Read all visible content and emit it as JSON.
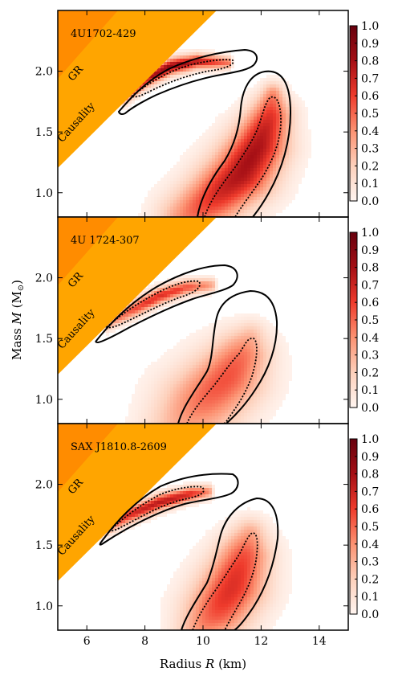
{
  "chart_data": {
    "type": "heatmap",
    "shared_axes": {
      "xlabel": "Radius R (km)",
      "ylabel": "Mass M (M⊙)",
      "xlim": [
        5,
        15
      ],
      "ylim": [
        0.8,
        2.5
      ],
      "xticks": [
        6,
        8,
        10,
        12,
        14
      ],
      "xtick_labels": [
        "6",
        "8",
        "10",
        "12",
        "14"
      ],
      "yticks": [
        1.0,
        1.5,
        2.0
      ],
      "ytick_labels": [
        "1.0",
        "1.5",
        "2.0"
      ]
    },
    "colorbar": {
      "range": [
        0.0,
        1.0
      ],
      "ticks": [
        0.0,
        0.1,
        0.2,
        0.3,
        0.4,
        0.5,
        0.6,
        0.7,
        0.8,
        0.9,
        1.0
      ],
      "tick_labels": [
        "0.0",
        "0.1",
        "0.2",
        "0.3",
        "0.4",
        "0.5",
        "0.6",
        "0.7",
        "0.8",
        "0.9",
        "1.0"
      ],
      "colors": [
        "#fff5f0",
        "#fdd0bb",
        "#fc9272",
        "#ef3b2c",
        "#a50f15",
        "#67000d"
      ]
    },
    "regions": {
      "gr_label": "GR",
      "gr_color": "#ff8c00",
      "causality_label": "Causality",
      "causality_color": "#ffa500"
    },
    "panels": [
      {
        "title": "4U1702-429",
        "blobs": [
          {
            "spine": [
              [
                7.3,
                1.78
              ],
              [
                8.0,
                1.93
              ],
              [
                8.9,
                2.04
              ],
              [
                9.8,
                2.08
              ],
              [
                10.9,
                2.07
              ]
            ],
            "width": [
              0.04,
              0.06,
              0.06,
              0.05,
              0.03
            ],
            "peak": 0.85
          },
          {
            "spine": [
              [
                9.5,
                0.8
              ],
              [
                10.4,
                0.96
              ],
              [
                11.3,
                1.15
              ],
              [
                11.9,
                1.38
              ],
              [
                12.3,
                1.62
              ],
              [
                12.4,
                1.8
              ]
            ],
            "width": [
              0.3,
              0.32,
              0.34,
              0.3,
              0.22,
              0.12
            ],
            "peak": 0.8
          }
        ]
      },
      {
        "title": "4U 1724-307",
        "blobs": [
          {
            "spine": [
              [
                6.7,
                1.62
              ],
              [
                7.6,
                1.74
              ],
              [
                8.5,
                1.85
              ],
              [
                9.4,
                1.92
              ],
              [
                10.3,
                1.94
              ]
            ],
            "width": [
              0.04,
              0.06,
              0.06,
              0.05,
              0.04
            ],
            "peak": 0.65
          },
          {
            "spine": [
              [
                9.2,
                0.8
              ],
              [
                10.0,
                0.98
              ],
              [
                10.8,
                1.17
              ],
              [
                11.3,
                1.35
              ],
              [
                11.6,
                1.5
              ]
            ],
            "width": [
              0.35,
              0.42,
              0.38,
              0.3,
              0.18
            ],
            "peak": 0.55
          }
        ]
      },
      {
        "title": "SAX J1810.8-2609",
        "blobs": [
          {
            "spine": [
              [
                6.5,
                1.62
              ],
              [
                7.4,
                1.74
              ],
              [
                8.5,
                1.85
              ],
              [
                9.6,
                1.92
              ],
              [
                10.2,
                1.94
              ]
            ],
            "width": [
              0.04,
              0.06,
              0.06,
              0.05,
              0.04
            ],
            "peak": 0.75
          },
          {
            "spine": [
              [
                9.9,
                0.8
              ],
              [
                10.5,
                0.96
              ],
              [
                11.0,
                1.15
              ],
              [
                11.4,
                1.4
              ],
              [
                11.6,
                1.58
              ]
            ],
            "width": [
              0.26,
              0.34,
              0.34,
              0.28,
              0.18
            ],
            "peak": 0.65
          }
        ]
      }
    ]
  }
}
